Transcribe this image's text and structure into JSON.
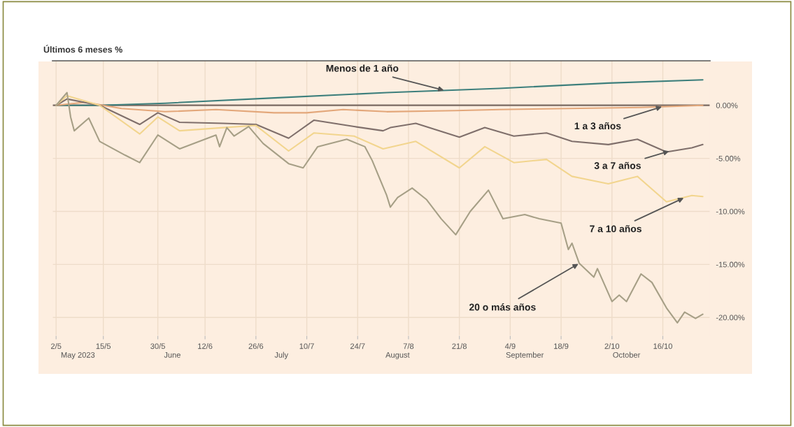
{
  "chart_data": {
    "type": "line",
    "title": "Últimos 6 meses %",
    "xlim": [
      "2023-05-01",
      "2023-10-29"
    ],
    "xticks": [
      {
        "value": "2023-05-02",
        "label": "2/5"
      },
      {
        "value": "2023-05-15",
        "label": "15/5"
      },
      {
        "value": "2023-05-30",
        "label": "30/5"
      },
      {
        "value": "2023-06-12",
        "label": "12/6"
      },
      {
        "value": "2023-06-26",
        "label": "26/6"
      },
      {
        "value": "2023-07-10",
        "label": "10/7"
      },
      {
        "value": "2023-07-24",
        "label": "24/7"
      },
      {
        "value": "2023-08-07",
        "label": "7/8"
      },
      {
        "value": "2023-08-21",
        "label": "21/8"
      },
      {
        "value": "2023-09-04",
        "label": "4/9"
      },
      {
        "value": "2023-09-18",
        "label": "18/9"
      },
      {
        "value": "2023-10-02",
        "label": "2/10"
      },
      {
        "value": "2023-10-16",
        "label": "16/10"
      }
    ],
    "x2lim": [
      "2023-05-01",
      "2023-10-29"
    ],
    "x2ticks": [
      {
        "value": "2023-05-08",
        "label": "May 2023"
      },
      {
        "value": "2023-06-03",
        "label": "June"
      },
      {
        "value": "2023-07-03",
        "label": "July"
      },
      {
        "value": "2023-08-04",
        "label": "August"
      },
      {
        "value": "2023-09-08",
        "label": "September"
      },
      {
        "value": "2023-10-06",
        "label": "October"
      }
    ],
    "ylim": [
      -21.7,
      4.2
    ],
    "yticks": [
      {
        "value": 0,
        "label": "0.00%"
      },
      {
        "value": -5,
        "label": "-5.00%"
      },
      {
        "value": -10,
        "label": "-10.00%"
      },
      {
        "value": -15,
        "label": "-15.00%"
      },
      {
        "value": -20,
        "label": "-20.00%"
      }
    ],
    "grid": true,
    "line_style": "solid",
    "ref_lines": [
      {
        "axis": "y",
        "value": 0,
        "color": "#7a6a62"
      }
    ],
    "series": [
      {
        "color": "#3d7f7c",
        "x": [
          "2023-05-02",
          "2023-05-14",
          "2023-06-01",
          "2023-07-01",
          "2023-08-01",
          "2023-09-01",
          "2023-10-01",
          "2023-10-27"
        ],
        "values": [
          0,
          0,
          0.2,
          0.7,
          1.2,
          1.6,
          2.1,
          2.4
        ]
      },
      {
        "color": "#e3a77a",
        "x": [
          "2023-05-02",
          "2023-05-10",
          "2023-05-20",
          "2023-06-01",
          "2023-06-15",
          "2023-07-01",
          "2023-07-10",
          "2023-07-20",
          "2023-08-01",
          "2023-08-20",
          "2023-09-01",
          "2023-09-20",
          "2023-10-10",
          "2023-10-27"
        ],
        "values": [
          0,
          0.3,
          -0.3,
          -0.6,
          -0.4,
          -0.7,
          -0.7,
          -0.4,
          -0.6,
          -0.5,
          -0.4,
          -0.3,
          -0.2,
          0
        ]
      },
      {
        "color": "#7f6f6b",
        "x": [
          "2023-05-02",
          "2023-05-05",
          "2023-05-14",
          "2023-05-25",
          "2023-05-30",
          "2023-06-05",
          "2023-06-17",
          "2023-06-26",
          "2023-07-05",
          "2023-07-12",
          "2023-07-23",
          "2023-07-31",
          "2023-08-02",
          "2023-08-09",
          "2023-08-21",
          "2023-08-28",
          "2023-09-05",
          "2023-09-14",
          "2023-09-21",
          "2023-10-01",
          "2023-10-09",
          "2023-10-17",
          "2023-10-24",
          "2023-10-27"
        ],
        "values": [
          0,
          0.6,
          0,
          -1.8,
          -0.7,
          -1.6,
          -1.7,
          -1.8,
          -3.1,
          -1.4,
          -2.0,
          -2.4,
          -2.1,
          -1.7,
          -3.0,
          -2.1,
          -2.9,
          -2.6,
          -3.4,
          -3.7,
          -3.2,
          -4.4,
          -4.0,
          -3.7
        ]
      },
      {
        "color": "#f2d58e",
        "x": [
          "2023-05-02",
          "2023-05-05",
          "2023-05-14",
          "2023-05-25",
          "2023-05-30",
          "2023-06-05",
          "2023-06-17",
          "2023-06-26",
          "2023-07-05",
          "2023-07-12",
          "2023-07-23",
          "2023-07-31",
          "2023-08-09",
          "2023-08-21",
          "2023-08-28",
          "2023-09-05",
          "2023-09-14",
          "2023-09-21",
          "2023-10-01",
          "2023-10-09",
          "2023-10-17",
          "2023-10-24",
          "2023-10-27"
        ],
        "values": [
          0,
          0.9,
          0,
          -2.7,
          -1.1,
          -2.4,
          -2.1,
          -1.9,
          -4.3,
          -2.6,
          -2.9,
          -4.1,
          -3.4,
          -5.9,
          -3.9,
          -5.4,
          -5.1,
          -6.7,
          -7.4,
          -6.7,
          -9.1,
          -8.5,
          -8.6
        ]
      },
      {
        "color": "#a69f86",
        "x": [
          "2023-05-02",
          "2023-05-05",
          "2023-05-06",
          "2023-05-07",
          "2023-05-11",
          "2023-05-14",
          "2023-05-21",
          "2023-05-25",
          "2023-05-30",
          "2023-06-05",
          "2023-06-15",
          "2023-06-16",
          "2023-06-18",
          "2023-06-20",
          "2023-06-24",
          "2023-06-28",
          "2023-07-05",
          "2023-07-09",
          "2023-07-13",
          "2023-07-21",
          "2023-07-26",
          "2023-07-28",
          "2023-08-01",
          "2023-08-02",
          "2023-08-04",
          "2023-08-08",
          "2023-08-12",
          "2023-08-16",
          "2023-08-20",
          "2023-08-24",
          "2023-08-29",
          "2023-09-02",
          "2023-09-08",
          "2023-09-12",
          "2023-09-18",
          "2023-09-20",
          "2023-09-21",
          "2023-09-23",
          "2023-09-27",
          "2023-09-28",
          "2023-10-02",
          "2023-10-04",
          "2023-10-06",
          "2023-10-10",
          "2023-10-13",
          "2023-10-17",
          "2023-10-20",
          "2023-10-22",
          "2023-10-25",
          "2023-10-27"
        ],
        "values": [
          0,
          1.2,
          -1.1,
          -2.4,
          -1.2,
          -3.4,
          -4.7,
          -5.4,
          -2.8,
          -4.1,
          -2.8,
          -3.9,
          -2.1,
          -2.9,
          -2.0,
          -3.6,
          -5.5,
          -5.9,
          -3.9,
          -3.2,
          -3.9,
          -5.2,
          -8.5,
          -9.6,
          -8.7,
          -7.8,
          -8.9,
          -10.7,
          -12.2,
          -10.0,
          -8.0,
          -10.7,
          -10.3,
          -10.7,
          -11.1,
          -13.6,
          -13.0,
          -14.9,
          -16.2,
          -15.4,
          -18.5,
          -17.9,
          -18.5,
          -15.9,
          -16.7,
          -19.1,
          -20.5,
          -19.5,
          -20.1,
          -19.7
        ]
      }
    ],
    "annotations": [
      {
        "text": "Menos de 1 año",
        "x": "2023-08-17",
        "y": 1.4
      },
      {
        "text": "1 a 3 años",
        "x": "2023-10-16",
        "y": -0.1
      },
      {
        "text": "3 a 7 años",
        "x": "2023-10-18",
        "y": -4.3
      },
      {
        "text": "7 a 10 años",
        "x": "2023-10-22",
        "y": -8.7
      },
      {
        "text": "20 o más años",
        "x": "2023-09-23",
        "y": -14.9
      }
    ]
  }
}
